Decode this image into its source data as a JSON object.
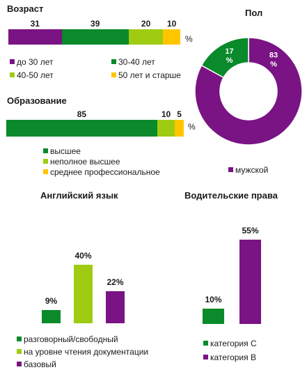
{
  "colors": {
    "dark_green": "#0a8a2a",
    "light_green": "#9fcb12",
    "purple": "#7a1383",
    "yellow": "#ffc600"
  },
  "chart_data": [
    {
      "type": "bar",
      "orientation": "horizontal-stacked",
      "title": "Возраст",
      "unit_label": "%",
      "series": [
        {
          "name": "до 30 лет",
          "value": 31,
          "label": "31",
          "color": "#7a1383"
        },
        {
          "name": "30-40 лет",
          "value": 39,
          "label": "39",
          "color": "#0a8a2a"
        },
        {
          "name": "40-50 лет",
          "value": 20,
          "label": "20",
          "color": "#9fcb12"
        },
        {
          "name": "50 лет и старше",
          "value": 10,
          "label": "10",
          "color": "#ffc600"
        }
      ]
    },
    {
      "type": "bar",
      "orientation": "horizontal-stacked",
      "title": "Образование",
      "unit_label": "%",
      "series": [
        {
          "name": "высшее",
          "value": 85,
          "label": "85",
          "color": "#0a8a2a"
        },
        {
          "name": "неполное высшее",
          "value": 10,
          "label": "10",
          "color": "#9fcb12"
        },
        {
          "name": "среднее профессиональное",
          "value": 5,
          "label": "5",
          "color": "#ffc600"
        }
      ]
    },
    {
      "type": "pie",
      "title": "Пол",
      "slices": [
        {
          "name": "мужской",
          "value": 83,
          "label": "83 %",
          "color": "#7a1383"
        },
        {
          "name": "",
          "value": 17,
          "label": "17 %",
          "color": "#0a8a2a"
        }
      ],
      "legend": [
        "мужской"
      ]
    },
    {
      "type": "bar",
      "title": "Английский язык",
      "series": [
        {
          "name": "разговорный/свободный",
          "value": 9,
          "label": "9%",
          "color": "#0a8a2a"
        },
        {
          "name": "на уровне чтения документации",
          "value": 40,
          "label": "40%",
          "color": "#9fcb12"
        },
        {
          "name": "базовый",
          "value": 22,
          "label": "22%",
          "color": "#7a1383"
        }
      ]
    },
    {
      "type": "bar",
      "title": "Водительские права",
      "series": [
        {
          "name": "категория  C",
          "value": 10,
          "label": "10%",
          "color": "#0a8a2a"
        },
        {
          "name": "категория  B",
          "value": 55,
          "label": "55%",
          "color": "#7a1383"
        }
      ]
    }
  ]
}
